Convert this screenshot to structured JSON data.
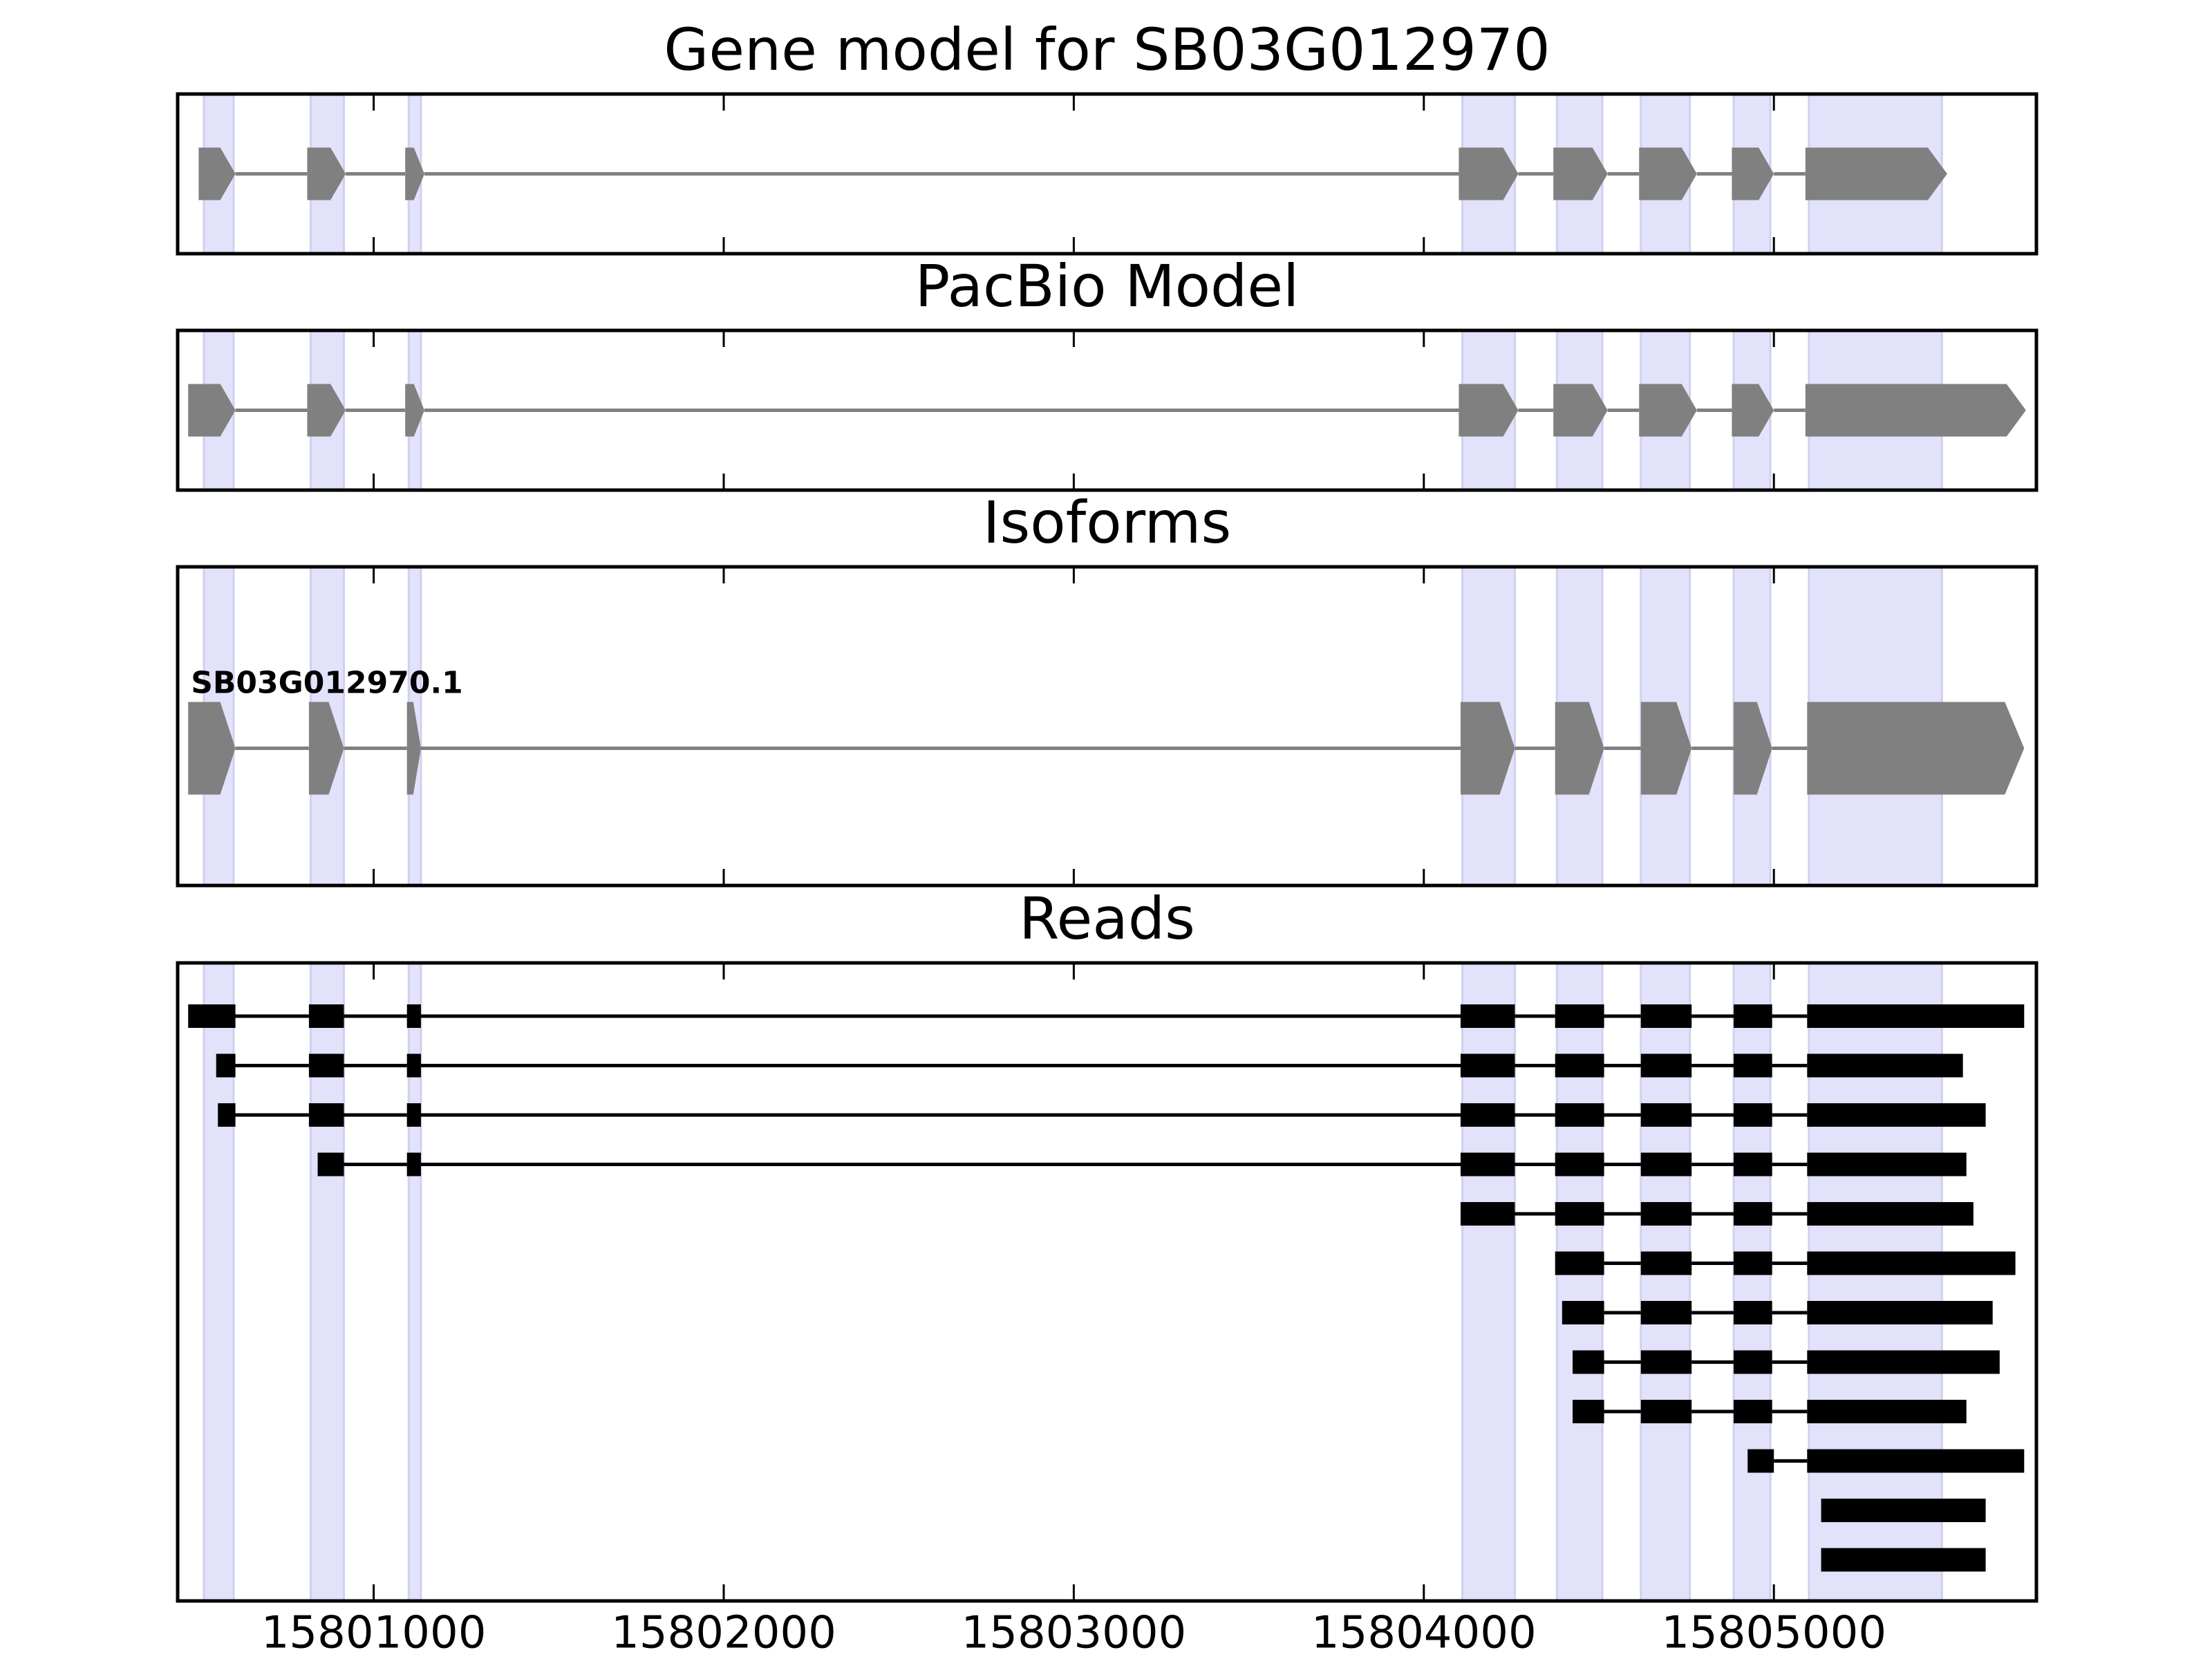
{
  "chart_data": {
    "type": "gene-structure",
    "x_axis": {
      "range": [
        15800440,
        15805750
      ],
      "ticks": [
        15801000,
        15802000,
        15803000,
        15804000,
        15805000
      ],
      "tick_labels": [
        "15801000",
        "15802000",
        "15803000",
        "15804000",
        "15805000"
      ]
    },
    "colors": {
      "highlight": "#e2e2fb",
      "highlight_edge": "#d0d0f0",
      "model_feature": "#808080",
      "read_feature": "#000000",
      "frame": "#000000"
    },
    "highlight_regions": [
      [
        15800515,
        15800600
      ],
      [
        15800820,
        15800915
      ],
      [
        15801100,
        15801135
      ],
      [
        15804110,
        15804260
      ],
      [
        15804380,
        15804510
      ],
      [
        15804620,
        15804760
      ],
      [
        15804885,
        15804990
      ],
      [
        15805100,
        15805480
      ]
    ],
    "panels": [
      {
        "title": "Gene model for SB03G012970",
        "kind": "model",
        "exons": [
          [
            15800500,
            15800605
          ],
          [
            15800810,
            15800920
          ],
          [
            15801090,
            15801145
          ],
          [
            15804100,
            15804270
          ],
          [
            15804370,
            15804525
          ],
          [
            15804615,
            15804780
          ],
          [
            15804880,
            15805000
          ],
          [
            15805090,
            15805495
          ]
        ]
      },
      {
        "title": "PacBio Model",
        "kind": "model",
        "exons": [
          [
            15800470,
            15800605
          ],
          [
            15800810,
            15800920
          ],
          [
            15801090,
            15801145
          ],
          [
            15804100,
            15804270
          ],
          [
            15804370,
            15804525
          ],
          [
            15804615,
            15804780
          ],
          [
            15804880,
            15805000
          ],
          [
            15805090,
            15805720
          ]
        ]
      },
      {
        "title": "Isoforms",
        "kind": "model",
        "isoforms": [
          {
            "name": "SB03G012970.1",
            "exons": [
              [
                15800470,
                15800605
              ],
              [
                15800815,
                15800915
              ],
              [
                15801095,
                15801135
              ],
              [
                15804105,
                15804260
              ],
              [
                15804375,
                15804515
              ],
              [
                15804620,
                15804765
              ],
              [
                15804885,
                15804995
              ],
              [
                15805095,
                15805715
              ]
            ]
          }
        ]
      },
      {
        "title": "Reads",
        "kind": "reads",
        "reads": [
          [
            [
              15800470,
              15800605
            ],
            [
              15800815,
              15800915
            ],
            [
              15801095,
              15801135
            ],
            [
              15804105,
              15804260
            ],
            [
              15804375,
              15804515
            ],
            [
              15804620,
              15804765
            ],
            [
              15804885,
              15804995
            ],
            [
              15805095,
              15805715
            ]
          ],
          [
            [
              15800550,
              15800605
            ],
            [
              15800815,
              15800915
            ],
            [
              15801095,
              15801135
            ],
            [
              15804105,
              15804260
            ],
            [
              15804375,
              15804515
            ],
            [
              15804620,
              15804765
            ],
            [
              15804885,
              15804995
            ],
            [
              15805095,
              15805540
            ]
          ],
          [
            [
              15800555,
              15800605
            ],
            [
              15800815,
              15800915
            ],
            [
              15801095,
              15801135
            ],
            [
              15804105,
              15804260
            ],
            [
              15804375,
              15804515
            ],
            [
              15804620,
              15804765
            ],
            [
              15804885,
              15804995
            ],
            [
              15805095,
              15805605
            ]
          ],
          [
            [
              15800840,
              15800915
            ],
            [
              15801095,
              15801135
            ],
            [
              15804105,
              15804260
            ],
            [
              15804375,
              15804515
            ],
            [
              15804620,
              15804765
            ],
            [
              15804885,
              15804995
            ],
            [
              15805095,
              15805550
            ]
          ],
          [
            [
              15804105,
              15804260
            ],
            [
              15804375,
              15804515
            ],
            [
              15804620,
              15804765
            ],
            [
              15804885,
              15804995
            ],
            [
              15805095,
              15805570
            ]
          ],
          [
            [
              15804375,
              15804515
            ],
            [
              15804620,
              15804765
            ],
            [
              15804885,
              15804995
            ],
            [
              15805095,
              15805690
            ]
          ],
          [
            [
              15804395,
              15804515
            ],
            [
              15804620,
              15804765
            ],
            [
              15804885,
              15804995
            ],
            [
              15805095,
              15805625
            ]
          ],
          [
            [
              15804425,
              15804515
            ],
            [
              15804620,
              15804765
            ],
            [
              15804885,
              15804995
            ],
            [
              15805095,
              15805645
            ]
          ],
          [
            [
              15804425,
              15804515
            ],
            [
              15804620,
              15804765
            ],
            [
              15804885,
              15804995
            ],
            [
              15805095,
              15805550
            ]
          ],
          [
            [
              15804925,
              15805000
            ],
            [
              15805095,
              15805715
            ]
          ],
          [
            [
              15805135,
              15805605
            ]
          ],
          [
            [
              15805135,
              15805605
            ]
          ]
        ]
      }
    ]
  }
}
